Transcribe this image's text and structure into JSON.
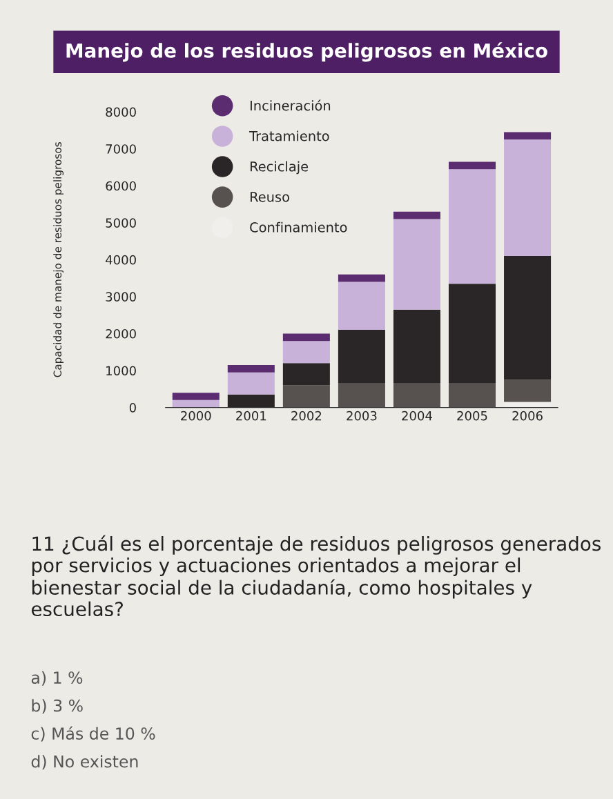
{
  "chart_data": {
    "type": "bar",
    "title": "Manejo de los residuos peligrosos en México",
    "ylabel": "Capacidad de manejo de residuos peligrosos",
    "categories": [
      "2000",
      "2001",
      "2002",
      "2003",
      "2004",
      "2005",
      "2006"
    ],
    "stacked": true,
    "series": [
      {
        "name": "Confinamiento",
        "color": "#f1efec",
        "values": [
          0,
          0,
          0,
          0,
          0,
          0,
          150
        ]
      },
      {
        "name": "Reuso",
        "color": "#57524f",
        "values": [
          0,
          0,
          600,
          650,
          650,
          650,
          600
        ]
      },
      {
        "name": "Reciclaje",
        "color": "#2a2527",
        "values": [
          0,
          350,
          600,
          1450,
          2000,
          2700,
          3350
        ]
      },
      {
        "name": "Tratamiento",
        "color": "#c9b2d9",
        "values": [
          200,
          600,
          600,
          1300,
          2450,
          3100,
          3150
        ]
      },
      {
        "name": "Incineración",
        "color": "#5c2c70",
        "values": [
          200,
          200,
          200,
          200,
          200,
          200,
          200
        ]
      }
    ],
    "ylim": [
      0,
      8000
    ],
    "yticks": [
      0,
      1000,
      2000,
      3000,
      4000,
      5000,
      6000,
      7000,
      8000
    ],
    "legend": "top left",
    "grid": false,
    "annotations": [
      "11 ¿Cuál es el porcentaje de residuos peligrosos generados por servicios y actuaciones orientados a mejorar el bienestar social de la ciudadanía, como hospitales y escuelas?",
      "a) 1 %",
      "b) 3 %",
      "c) Más de 10 %",
      "d) No existen"
    ]
  }
}
